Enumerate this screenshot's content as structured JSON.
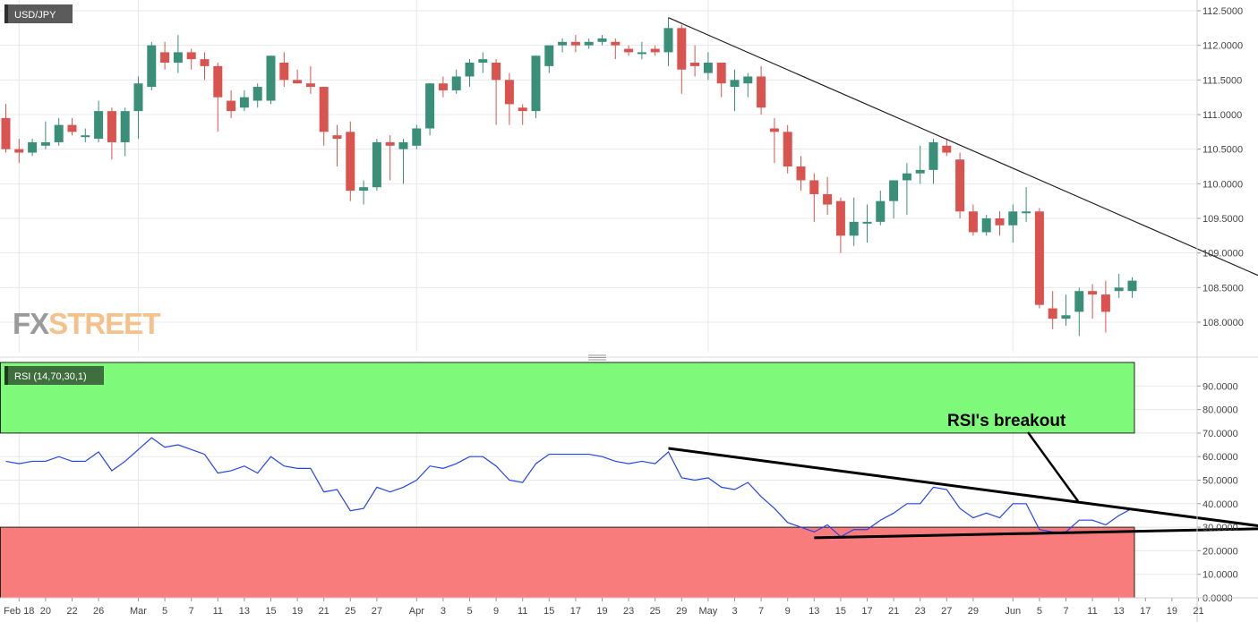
{
  "instrument_label": "USD/JPY",
  "watermark": {
    "part1": "FX",
    "part2": "STREET"
  },
  "colors": {
    "up": "#3a8f78",
    "down": "#d9534f",
    "overbought_zone": "#7ef97a",
    "oversold_zone": "#f87c7c",
    "rsi_line": "#2244ee",
    "grid": "#e8e8e8"
  },
  "chart_data": [
    {
      "type": "candlestick",
      "title": "USD/JPY",
      "ylim": [
        107.6,
        112.6
      ],
      "yticks": [
        108.0,
        108.5,
        109.0,
        109.5,
        110.0,
        110.5,
        111.0,
        111.5,
        112.0,
        112.5
      ],
      "ytick_labels": [
        "108.0000",
        "108.5000",
        "109.0000",
        "109.5000",
        "110.0000",
        "110.5000",
        "111.0000",
        "111.5000",
        "112.0000",
        "112.5000"
      ],
      "candles": [
        {
          "open": 110.95,
          "high": 111.15,
          "low": 110.45,
          "close": 110.5
        },
        {
          "open": 110.5,
          "high": 110.65,
          "low": 110.3,
          "close": 110.45
        },
        {
          "open": 110.45,
          "high": 110.65,
          "low": 110.4,
          "close": 110.6
        },
        {
          "open": 110.55,
          "high": 110.9,
          "low": 110.5,
          "close": 110.6
        },
        {
          "open": 110.6,
          "high": 110.95,
          "low": 110.55,
          "close": 110.85
        },
        {
          "open": 110.85,
          "high": 110.95,
          "low": 110.7,
          "close": 110.75
        },
        {
          "open": 110.7,
          "high": 110.8,
          "low": 110.6,
          "close": 110.7
        },
        {
          "open": 110.65,
          "high": 111.2,
          "low": 110.6,
          "close": 111.05
        },
        {
          "open": 111.05,
          "high": 111.1,
          "low": 110.35,
          "close": 110.6
        },
        {
          "open": 110.6,
          "high": 111.1,
          "low": 110.4,
          "close": 111.05
        },
        {
          "open": 111.05,
          "high": 111.55,
          "low": 110.65,
          "close": 111.45
        },
        {
          "open": 111.4,
          "high": 112.05,
          "low": 111.35,
          "close": 112.0
        },
        {
          "open": 111.9,
          "high": 112.05,
          "low": 111.65,
          "close": 111.75
        },
        {
          "open": 111.75,
          "high": 112.15,
          "low": 111.6,
          "close": 111.9
        },
        {
          "open": 111.9,
          "high": 111.95,
          "low": 111.65,
          "close": 111.8
        },
        {
          "open": 111.8,
          "high": 111.9,
          "low": 111.5,
          "close": 111.7
        },
        {
          "open": 111.7,
          "high": 111.75,
          "low": 110.75,
          "close": 111.25
        },
        {
          "open": 111.2,
          "high": 111.35,
          "low": 110.95,
          "close": 111.05
        },
        {
          "open": 111.1,
          "high": 111.35,
          "low": 111.05,
          "close": 111.25
        },
        {
          "open": 111.2,
          "high": 111.45,
          "low": 111.1,
          "close": 111.4
        },
        {
          "open": 111.2,
          "high": 111.85,
          "low": 111.15,
          "close": 111.85
        },
        {
          "open": 111.75,
          "high": 111.9,
          "low": 111.4,
          "close": 111.5
        },
        {
          "open": 111.5,
          "high": 111.65,
          "low": 111.45,
          "close": 111.45
        },
        {
          "open": 111.45,
          "high": 111.7,
          "low": 111.3,
          "close": 111.4
        },
        {
          "open": 111.4,
          "high": 111.4,
          "low": 110.55,
          "close": 110.75
        },
        {
          "open": 110.7,
          "high": 110.85,
          "low": 110.25,
          "close": 110.65
        },
        {
          "open": 110.75,
          "high": 110.9,
          "low": 109.75,
          "close": 109.9
        },
        {
          "open": 109.9,
          "high": 110.05,
          "low": 109.7,
          "close": 109.95
        },
        {
          "open": 109.95,
          "high": 110.65,
          "low": 109.9,
          "close": 110.6
        },
        {
          "open": 110.6,
          "high": 110.7,
          "low": 110.05,
          "close": 110.55
        },
        {
          "open": 110.5,
          "high": 110.65,
          "low": 110.0,
          "close": 110.6
        },
        {
          "open": 110.55,
          "high": 110.85,
          "low": 110.5,
          "close": 110.8
        },
        {
          "open": 110.8,
          "high": 111.45,
          "low": 110.7,
          "close": 111.45
        },
        {
          "open": 111.45,
          "high": 111.55,
          "low": 111.25,
          "close": 111.35
        },
        {
          "open": 111.35,
          "high": 111.65,
          "low": 111.3,
          "close": 111.55
        },
        {
          "open": 111.55,
          "high": 111.8,
          "low": 111.4,
          "close": 111.75
        },
        {
          "open": 111.75,
          "high": 111.9,
          "low": 111.6,
          "close": 111.8
        },
        {
          "open": 111.75,
          "high": 111.8,
          "low": 110.85,
          "close": 111.5
        },
        {
          "open": 111.5,
          "high": 111.6,
          "low": 110.85,
          "close": 111.15
        },
        {
          "open": 111.1,
          "high": 111.15,
          "low": 110.85,
          "close": 111.05
        },
        {
          "open": 111.05,
          "high": 111.85,
          "low": 110.95,
          "close": 111.85
        },
        {
          "open": 111.7,
          "high": 112.0,
          "low": 111.6,
          "close": 112.0
        },
        {
          "open": 112.0,
          "high": 112.1,
          "low": 111.9,
          "close": 112.05
        },
        {
          "open": 112.05,
          "high": 112.15,
          "low": 111.9,
          "close": 112.0
        },
        {
          "open": 112.0,
          "high": 112.1,
          "low": 111.95,
          "close": 112.05
        },
        {
          "open": 112.05,
          "high": 112.15,
          "low": 112.0,
          "close": 112.1
        },
        {
          "open": 112.05,
          "high": 112.1,
          "low": 111.8,
          "close": 112.0
        },
        {
          "open": 111.95,
          "high": 112.0,
          "low": 111.85,
          "close": 111.9
        },
        {
          "open": 111.9,
          "high": 112.05,
          "low": 111.8,
          "close": 111.9
        },
        {
          "open": 111.95,
          "high": 112.0,
          "low": 111.85,
          "close": 111.9
        },
        {
          "open": 111.9,
          "high": 112.4,
          "low": 111.7,
          "close": 112.25
        },
        {
          "open": 112.25,
          "high": 112.3,
          "low": 111.3,
          "close": 111.65
        },
        {
          "open": 111.75,
          "high": 112.0,
          "low": 111.55,
          "close": 111.7
        },
        {
          "open": 111.6,
          "high": 111.9,
          "low": 111.5,
          "close": 111.75
        },
        {
          "open": 111.75,
          "high": 111.75,
          "low": 111.25,
          "close": 111.45
        },
        {
          "open": 111.4,
          "high": 111.65,
          "low": 111.05,
          "close": 111.5
        },
        {
          "open": 111.45,
          "high": 111.6,
          "low": 111.25,
          "close": 111.55
        },
        {
          "open": 111.55,
          "high": 111.7,
          "low": 111.0,
          "close": 111.1
        },
        {
          "open": 110.8,
          "high": 110.95,
          "low": 110.3,
          "close": 110.75
        },
        {
          "open": 110.75,
          "high": 110.85,
          "low": 110.15,
          "close": 110.25
        },
        {
          "open": 110.25,
          "high": 110.4,
          "low": 109.9,
          "close": 110.05
        },
        {
          "open": 110.05,
          "high": 110.15,
          "low": 109.45,
          "close": 109.85
        },
        {
          "open": 109.85,
          "high": 110.1,
          "low": 109.55,
          "close": 109.7
        },
        {
          "open": 109.75,
          "high": 109.8,
          "low": 109.0,
          "close": 109.25
        },
        {
          "open": 109.25,
          "high": 109.8,
          "low": 109.1,
          "close": 109.45
        },
        {
          "open": 109.45,
          "high": 109.7,
          "low": 109.15,
          "close": 109.45
        },
        {
          "open": 109.45,
          "high": 109.9,
          "low": 109.4,
          "close": 109.75
        },
        {
          "open": 109.75,
          "high": 110.05,
          "low": 109.5,
          "close": 110.05
        },
        {
          "open": 110.05,
          "high": 110.3,
          "low": 109.55,
          "close": 110.15
        },
        {
          "open": 110.15,
          "high": 110.55,
          "low": 110.0,
          "close": 110.2
        },
        {
          "open": 110.2,
          "high": 110.65,
          "low": 110.0,
          "close": 110.6
        },
        {
          "open": 110.55,
          "high": 110.65,
          "low": 110.4,
          "close": 110.45
        },
        {
          "open": 110.35,
          "high": 110.45,
          "low": 109.5,
          "close": 109.6
        },
        {
          "open": 109.6,
          "high": 109.7,
          "low": 109.25,
          "close": 109.3
        },
        {
          "open": 109.3,
          "high": 109.55,
          "low": 109.25,
          "close": 109.5
        },
        {
          "open": 109.5,
          "high": 109.6,
          "low": 109.25,
          "close": 109.4
        },
        {
          "open": 109.4,
          "high": 109.7,
          "low": 109.15,
          "close": 109.6
        },
        {
          "open": 109.6,
          "high": 109.95,
          "low": 109.45,
          "close": 109.6
        },
        {
          "open": 109.6,
          "high": 109.65,
          "low": 108.2,
          "close": 108.25
        },
        {
          "open": 108.2,
          "high": 108.45,
          "low": 107.9,
          "close": 108.05
        },
        {
          "open": 108.05,
          "high": 108.4,
          "low": 107.95,
          "close": 108.1
        },
        {
          "open": 108.15,
          "high": 108.5,
          "low": 107.8,
          "close": 108.45
        },
        {
          "open": 108.45,
          "high": 108.55,
          "low": 108.05,
          "close": 108.4
        },
        {
          "open": 108.4,
          "high": 108.6,
          "low": 107.85,
          "close": 108.15
        },
        {
          "open": 108.45,
          "high": 108.7,
          "low": 108.35,
          "close": 108.5
        },
        {
          "open": 108.45,
          "high": 108.65,
          "low": 108.35,
          "close": 108.6
        }
      ],
      "trendline": {
        "from": {
          "bar": 50,
          "price": 112.4
        },
        "to": {
          "bar": 96,
          "price": 108.55
        }
      }
    },
    {
      "type": "line",
      "title": "RSI (14,70,30,1)",
      "ylim": [
        0,
        100
      ],
      "yticks": [
        0,
        10,
        20,
        30,
        40,
        50,
        60,
        70,
        80,
        90
      ],
      "ytick_labels": [
        "0.0000",
        "10.0000",
        "20.0000",
        "30.0000",
        "40.0000",
        "50.0000",
        "60.0000",
        "70.0000",
        "80.0000",
        "90.0000"
      ],
      "overbought": 70,
      "oversold": 30,
      "values": [
        58,
        57,
        58,
        58,
        60,
        58,
        58,
        62,
        54,
        58,
        63,
        68,
        64,
        65,
        63,
        61,
        53,
        54,
        56,
        53,
        60,
        56,
        55,
        55,
        45,
        46,
        37,
        38,
        47,
        45,
        47,
        50,
        56,
        55,
        57,
        60,
        60,
        56,
        50,
        49,
        57,
        61,
        61,
        61,
        61,
        60,
        58,
        57,
        58,
        57,
        62,
        51,
        50,
        51,
        47,
        46,
        49,
        43,
        38,
        32,
        30,
        28,
        31,
        26,
        29,
        29,
        33,
        36,
        40,
        40,
        47,
        46,
        38,
        34,
        36,
        34,
        40,
        40,
        29,
        28,
        28,
        33,
        33,
        31,
        35,
        38
      ],
      "annotation": "RSI's breakout",
      "resistance_line": {
        "from": {
          "bar": 50,
          "value": 63.5
        },
        "to": {
          "bar": 96,
          "value": 29.5
        }
      },
      "support_line": {
        "from": {
          "bar": 61,
          "value": 25.5
        },
        "to": {
          "bar": 96,
          "value": 29.5
        }
      }
    }
  ],
  "x_axis": {
    "labels": [
      {
        "bar": 1,
        "text": "Feb 18"
      },
      {
        "bar": 3,
        "text": "20"
      },
      {
        "bar": 5,
        "text": "22"
      },
      {
        "bar": 7,
        "text": "26"
      },
      {
        "bar": 10,
        "text": "Mar"
      },
      {
        "bar": 12,
        "text": "5"
      },
      {
        "bar": 14,
        "text": "7"
      },
      {
        "bar": 16,
        "text": "11"
      },
      {
        "bar": 18,
        "text": "13"
      },
      {
        "bar": 20,
        "text": "15"
      },
      {
        "bar": 22,
        "text": "19"
      },
      {
        "bar": 24,
        "text": "21"
      },
      {
        "bar": 26,
        "text": "25"
      },
      {
        "bar": 28,
        "text": "27"
      },
      {
        "bar": 31,
        "text": "Apr"
      },
      {
        "bar": 33,
        "text": "3"
      },
      {
        "bar": 35,
        "text": "5"
      },
      {
        "bar": 37,
        "text": "9"
      },
      {
        "bar": 39,
        "text": "11"
      },
      {
        "bar": 41,
        "text": "15"
      },
      {
        "bar": 43,
        "text": "17"
      },
      {
        "bar": 45,
        "text": "19"
      },
      {
        "bar": 47,
        "text": "23"
      },
      {
        "bar": 49,
        "text": "25"
      },
      {
        "bar": 51,
        "text": "29"
      },
      {
        "bar": 53,
        "text": "May"
      },
      {
        "bar": 55,
        "text": "3"
      },
      {
        "bar": 57,
        "text": "7"
      },
      {
        "bar": 59,
        "text": "9"
      },
      {
        "bar": 61,
        "text": "13"
      },
      {
        "bar": 63,
        "text": "15"
      },
      {
        "bar": 65,
        "text": "17"
      },
      {
        "bar": 67,
        "text": "21"
      },
      {
        "bar": 69,
        "text": "23"
      },
      {
        "bar": 71,
        "text": "27"
      },
      {
        "bar": 73,
        "text": "29"
      },
      {
        "bar": 76,
        "text": "Jun"
      },
      {
        "bar": 78,
        "text": "5"
      },
      {
        "bar": 80,
        "text": "7"
      },
      {
        "bar": 82,
        "text": "11"
      },
      {
        "bar": 84,
        "text": "13"
      },
      {
        "bar": 86,
        "text": "17"
      },
      {
        "bar": 88,
        "text": "19"
      },
      {
        "bar": 90,
        "text": "21"
      }
    ]
  }
}
